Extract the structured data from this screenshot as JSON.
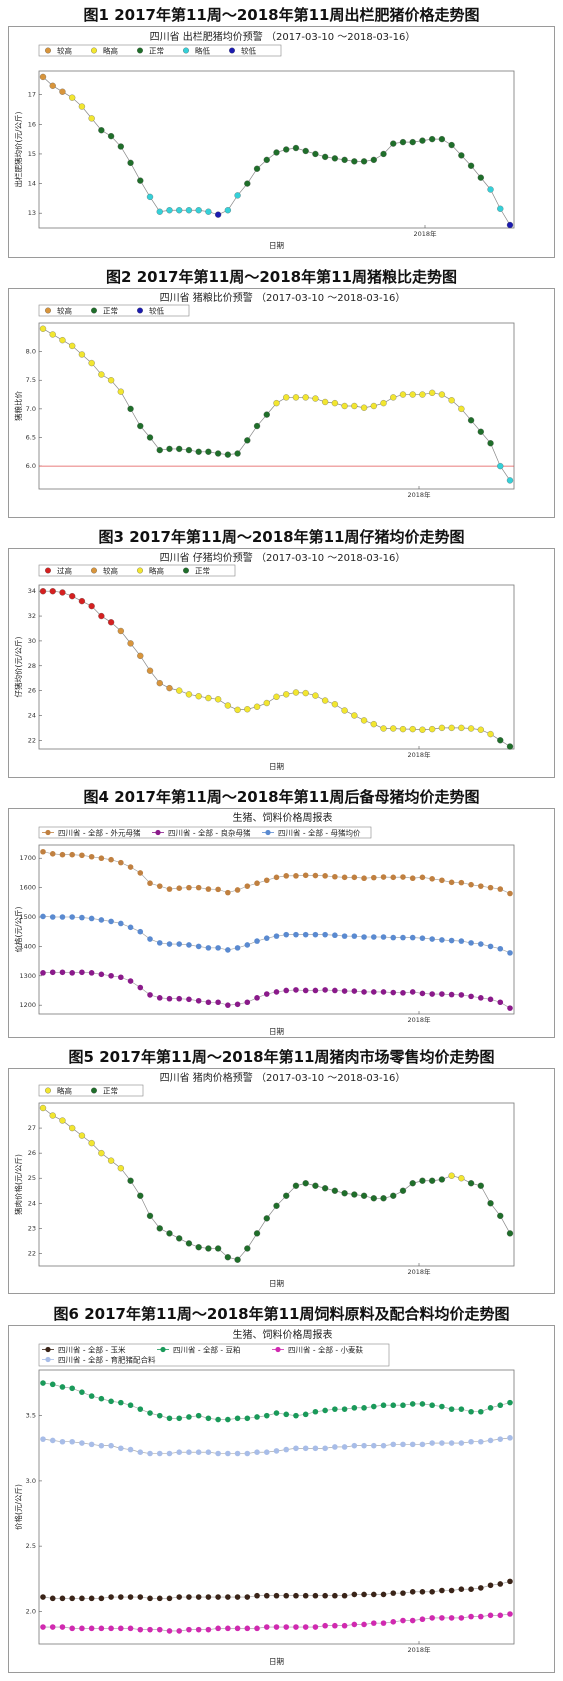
{
  "captions": [
    "图1   2017年第11周～2018年第11周出栏肥猪价格走势图",
    "图2   2017年第11周～2018年第11周猪粮比走势图",
    "图3   2017年第11周～2018年第11周仔猪均价走势图",
    "图4   2017年第11周～2018年第11周后备母猪均价走势图",
    "图5   2017年第11周～2018年第11周猪肉市场零售均价走势图",
    "图6   2017年第11周～2018年第11周饲料原料及配合料均价走势图"
  ],
  "colors": {
    "较高": "#d8953c",
    "略高": "#f2e630",
    "正常": "#1f6e2a",
    "略低": "#35d0d8",
    "较低": "#1b1bb0",
    "过高": "#d42020"
  },
  "chart_data": [
    {
      "type": "scatter",
      "title": "四川省 出栏肥猪均价预警 （2017-03-10 ～2018-03-16）",
      "xlabel": "日期",
      "ylabel": "出栏肥猪均价(元/公斤)",
      "x_tick_labels": [
        "2018年"
      ],
      "ylim": [
        12.5,
        17.8
      ],
      "yticks": [
        13,
        14,
        15,
        16,
        17
      ],
      "legend": [
        "较高",
        "略高",
        "正常",
        "略低",
        "较低"
      ],
      "values": [
        17.6,
        17.3,
        17.1,
        16.9,
        16.6,
        16.2,
        15.8,
        15.6,
        15.25,
        14.7,
        14.1,
        13.55,
        13.05,
        13.1,
        13.1,
        13.1,
        13.1,
        13.05,
        12.95,
        13.1,
        13.6,
        14.0,
        14.5,
        14.8,
        15.05,
        15.15,
        15.2,
        15.1,
        15.0,
        14.9,
        14.85,
        14.8,
        14.75,
        14.75,
        14.8,
        15.0,
        15.35,
        15.4,
        15.4,
        15.45,
        15.5,
        15.5,
        15.3,
        14.95,
        14.6,
        14.2,
        13.8,
        13.15,
        12.6
      ],
      "categories": [
        "较高",
        "较高",
        "较高",
        "略高",
        "略高",
        "略高",
        "正常",
        "正常",
        "正常",
        "正常",
        "正常",
        "略低",
        "略低",
        "略低",
        "略低",
        "略低",
        "略低",
        "略低",
        "较低",
        "略低",
        "略低",
        "正常",
        "正常",
        "正常",
        "正常",
        "正常",
        "正常",
        "正常",
        "正常",
        "正常",
        "正常",
        "正常",
        "正常",
        "正常",
        "正常",
        "正常",
        "正常",
        "正常",
        "正常",
        "正常",
        "正常",
        "正常",
        "正常",
        "正常",
        "正常",
        "正常",
        "略低",
        "略低",
        "较低"
      ],
      "ref_line": null
    },
    {
      "type": "scatter",
      "title": "四川省 猪粮比价预警 （2017-03-10 ～2018-03-16）",
      "xlabel": "",
      "ylabel": "猪粮比价",
      "x_tick_labels": [
        "2018年"
      ],
      "ylim": [
        5.6,
        8.5
      ],
      "yticks": [
        6.0,
        6.5,
        7.0,
        7.5,
        8.0
      ],
      "legend": [
        "较高",
        "正常",
        "较低"
      ],
      "values": [
        8.4,
        8.3,
        8.2,
        8.1,
        7.95,
        7.8,
        7.6,
        7.5,
        7.3,
        7.0,
        6.7,
        6.5,
        6.28,
        6.3,
        6.3,
        6.28,
        6.25,
        6.25,
        6.22,
        6.2,
        6.22,
        6.45,
        6.7,
        6.9,
        7.1,
        7.2,
        7.2,
        7.2,
        7.18,
        7.12,
        7.1,
        7.05,
        7.05,
        7.02,
        7.05,
        7.1,
        7.2,
        7.25,
        7.25,
        7.25,
        7.28,
        7.25,
        7.15,
        7.0,
        6.8,
        6.6,
        6.4,
        6.0,
        5.75
      ],
      "categories": [
        "略高",
        "略高",
        "略高",
        "略高",
        "略高",
        "略高",
        "略高",
        "略高",
        "略高",
        "正常",
        "正常",
        "正常",
        "正常",
        "正常",
        "正常",
        "正常",
        "正常",
        "正常",
        "正常",
        "正常",
        "正常",
        "正常",
        "正常",
        "正常",
        "略高",
        "略高",
        "略高",
        "略高",
        "略高",
        "略高",
        "略高",
        "略高",
        "略高",
        "略高",
        "略高",
        "略高",
        "略高",
        "略高",
        "略高",
        "略高",
        "略高",
        "略高",
        "略高",
        "略高",
        "正常",
        "正常",
        "正常",
        "略低",
        "略低"
      ],
      "ref_line": 6.0
    },
    {
      "type": "scatter",
      "title": "四川省 仔猪均价预警 （2017-03-10 ～2018-03-16）",
      "xlabel": "日期",
      "ylabel": "仔猪均价(元/公斤)",
      "x_tick_labels": [
        "2018年"
      ],
      "ylim": [
        21.3,
        34.5
      ],
      "yticks": [
        22,
        24,
        26,
        28,
        30,
        32,
        34
      ],
      "legend": [
        "过高",
        "较高",
        "略高",
        "正常"
      ],
      "values": [
        34.0,
        34.0,
        33.9,
        33.6,
        33.2,
        32.8,
        32.0,
        31.5,
        30.8,
        29.8,
        28.8,
        27.6,
        26.6,
        26.2,
        26.0,
        25.7,
        25.55,
        25.4,
        25.3,
        24.8,
        24.45,
        24.5,
        24.7,
        25.0,
        25.5,
        25.7,
        25.85,
        25.8,
        25.6,
        25.2,
        24.9,
        24.4,
        24.0,
        23.6,
        23.3,
        22.95,
        22.95,
        22.9,
        22.9,
        22.85,
        22.9,
        23.0,
        23.0,
        23.0,
        22.95,
        22.85,
        22.5,
        22.0,
        21.5
      ],
      "categories": [
        "过高",
        "过高",
        "过高",
        "过高",
        "过高",
        "过高",
        "过高",
        "过高",
        "较高",
        "较高",
        "较高",
        "较高",
        "较高",
        "较高",
        "略高",
        "略高",
        "略高",
        "略高",
        "略高",
        "略高",
        "略高",
        "略高",
        "略高",
        "略高",
        "略高",
        "略高",
        "略高",
        "略高",
        "略高",
        "略高",
        "略高",
        "略高",
        "略高",
        "略高",
        "略高",
        "略高",
        "略高",
        "略高",
        "略高",
        "略高",
        "略高",
        "略高",
        "略高",
        "略高",
        "略高",
        "略高",
        "略高",
        "正常",
        "正常"
      ],
      "ref_line": null
    },
    {
      "type": "line",
      "title": "生猪、饲料价格周报表",
      "xlabel": "日期",
      "ylabel": "价格(元/公斤)",
      "x_tick_labels": [
        "2018年"
      ],
      "ylim": [
        1170,
        1745
      ],
      "yticks": [
        1200,
        1300,
        1400,
        1500,
        1600,
        1700
      ],
      "series": [
        {
          "name": "四川省 - 全部 - 外元母猪",
          "color": "#c08040",
          "values": [
            1722,
            1715,
            1712,
            1712,
            1710,
            1705,
            1700,
            1695,
            1685,
            1670,
            1650,
            1615,
            1605,
            1595,
            1598,
            1600,
            1600,
            1595,
            1594,
            1583,
            1592,
            1605,
            1615,
            1625,
            1635,
            1640,
            1640,
            1642,
            1641,
            1640,
            1637,
            1635,
            1635,
            1632,
            1634,
            1636,
            1635,
            1636,
            1632,
            1635,
            1630,
            1625,
            1618,
            1617,
            1610,
            1605,
            1600,
            1595,
            1580
          ]
        },
        {
          "name": "四川省 - 全部 - 良杂母猪",
          "color": "#8a1a8a",
          "values": [
            1310,
            1312,
            1312,
            1310,
            1312,
            1310,
            1305,
            1300,
            1295,
            1282,
            1260,
            1235,
            1225,
            1222,
            1222,
            1220,
            1215,
            1210,
            1210,
            1200,
            1203,
            1210,
            1225,
            1238,
            1245,
            1250,
            1252,
            1250,
            1250,
            1252,
            1250,
            1248,
            1248,
            1245,
            1245,
            1245,
            1243,
            1242,
            1245,
            1240,
            1238,
            1238,
            1236,
            1235,
            1230,
            1225,
            1220,
            1210,
            1190
          ]
        },
        {
          "name": "四川省 - 全部 - 母猪均价",
          "color": "#5a8ad0",
          "values": [
            1502,
            1500,
            1500,
            1500,
            1498,
            1495,
            1490,
            1485,
            1478,
            1465,
            1450,
            1425,
            1412,
            1408,
            1408,
            1405,
            1400,
            1395,
            1395,
            1388,
            1395,
            1405,
            1418,
            1428,
            1435,
            1440,
            1440,
            1440,
            1440,
            1440,
            1438,
            1435,
            1435,
            1432,
            1432,
            1432,
            1430,
            1430,
            1430,
            1428,
            1425,
            1422,
            1420,
            1418,
            1412,
            1408,
            1400,
            1392,
            1378
          ]
        }
      ],
      "ref_line": null
    },
    {
      "type": "scatter",
      "title": "四川省 猪肉价格预警 （2017-03-10 ～2018-03-16）",
      "xlabel": "日期",
      "ylabel": "猪肉价格(元/公斤)",
      "x_tick_labels": [
        "2018年"
      ],
      "ylim": [
        21.5,
        28.0
      ],
      "yticks": [
        22,
        23,
        24,
        25,
        26,
        27
      ],
      "legend": [
        "略高",
        "正常"
      ],
      "values": [
        27.8,
        27.5,
        27.3,
        27.0,
        26.7,
        26.4,
        26.0,
        25.7,
        25.4,
        24.9,
        24.3,
        23.5,
        23.0,
        22.8,
        22.6,
        22.4,
        22.25,
        22.2,
        22.2,
        21.85,
        21.75,
        22.2,
        22.8,
        23.4,
        23.9,
        24.3,
        24.7,
        24.8,
        24.7,
        24.6,
        24.5,
        24.4,
        24.35,
        24.3,
        24.2,
        24.2,
        24.3,
        24.5,
        24.8,
        24.9,
        24.9,
        24.95,
        25.1,
        25.0,
        24.8,
        24.7,
        24.0,
        23.5,
        22.8
      ],
      "categories": [
        "略高",
        "略高",
        "略高",
        "略高",
        "略高",
        "略高",
        "略高",
        "略高",
        "略高",
        "正常",
        "正常",
        "正常",
        "正常",
        "正常",
        "正常",
        "正常",
        "正常",
        "正常",
        "正常",
        "正常",
        "正常",
        "正常",
        "正常",
        "正常",
        "正常",
        "正常",
        "正常",
        "正常",
        "正常",
        "正常",
        "正常",
        "正常",
        "正常",
        "正常",
        "正常",
        "正常",
        "正常",
        "正常",
        "正常",
        "正常",
        "正常",
        "正常",
        "略高",
        "略高",
        "正常",
        "正常",
        "正常",
        "正常",
        "正常"
      ],
      "ref_line": null
    },
    {
      "type": "line",
      "title": "生猪、饲料价格周报表",
      "xlabel": "日期",
      "ylabel": "价格(元/公斤)",
      "x_tick_labels": [
        "2018年"
      ],
      "ylim": [
        1.75,
        3.85
      ],
      "yticks": [
        2.0,
        2.5,
        3.0,
        3.5
      ],
      "series": [
        {
          "name": "四川省 - 全部 - 玉米",
          "color": "#3a2418",
          "values": [
            2.11,
            2.1,
            2.1,
            2.1,
            2.1,
            2.1,
            2.1,
            2.11,
            2.11,
            2.11,
            2.11,
            2.1,
            2.1,
            2.1,
            2.11,
            2.11,
            2.11,
            2.11,
            2.11,
            2.11,
            2.11,
            2.11,
            2.12,
            2.12,
            2.12,
            2.12,
            2.12,
            2.12,
            2.12,
            2.12,
            2.12,
            2.12,
            2.13,
            2.13,
            2.13,
            2.13,
            2.14,
            2.14,
            2.15,
            2.15,
            2.15,
            2.16,
            2.16,
            2.17,
            2.17,
            2.18,
            2.2,
            2.21,
            2.23
          ]
        },
        {
          "name": "四川省 - 全部 - 豆粕",
          "color": "#1a9a5a",
          "values": [
            3.75,
            3.74,
            3.72,
            3.71,
            3.68,
            3.65,
            3.63,
            3.61,
            3.6,
            3.58,
            3.55,
            3.52,
            3.5,
            3.48,
            3.48,
            3.49,
            3.5,
            3.48,
            3.47,
            3.47,
            3.48,
            3.48,
            3.49,
            3.5,
            3.52,
            3.51,
            3.5,
            3.51,
            3.53,
            3.54,
            3.55,
            3.55,
            3.56,
            3.56,
            3.57,
            3.58,
            3.58,
            3.58,
            3.59,
            3.59,
            3.58,
            3.57,
            3.55,
            3.55,
            3.53,
            3.53,
            3.56,
            3.58,
            3.6
          ]
        },
        {
          "name": "四川省 - 全部 - 小麦麸",
          "color": "#d02ab0",
          "values": [
            1.88,
            1.88,
            1.88,
            1.87,
            1.87,
            1.87,
            1.87,
            1.87,
            1.87,
            1.87,
            1.86,
            1.86,
            1.86,
            1.85,
            1.85,
            1.86,
            1.86,
            1.86,
            1.87,
            1.87,
            1.87,
            1.87,
            1.87,
            1.88,
            1.88,
            1.88,
            1.88,
            1.88,
            1.88,
            1.89,
            1.89,
            1.89,
            1.9,
            1.9,
            1.91,
            1.91,
            1.92,
            1.93,
            1.93,
            1.94,
            1.95,
            1.95,
            1.95,
            1.95,
            1.96,
            1.96,
            1.97,
            1.97,
            1.98
          ]
        },
        {
          "name": "四川省 - 全部 - 育肥猪配合料",
          "color": "#a8bde8",
          "values": [
            3.32,
            3.31,
            3.3,
            3.3,
            3.29,
            3.28,
            3.27,
            3.27,
            3.25,
            3.24,
            3.22,
            3.21,
            3.21,
            3.21,
            3.22,
            3.22,
            3.22,
            3.22,
            3.21,
            3.21,
            3.21,
            3.21,
            3.22,
            3.22,
            3.23,
            3.24,
            3.25,
            3.25,
            3.25,
            3.25,
            3.26,
            3.26,
            3.27,
            3.27,
            3.27,
            3.27,
            3.28,
            3.28,
            3.28,
            3.28,
            3.29,
            3.29,
            3.29,
            3.29,
            3.3,
            3.3,
            3.31,
            3.32,
            3.33
          ]
        }
      ],
      "ref_line": null
    }
  ]
}
